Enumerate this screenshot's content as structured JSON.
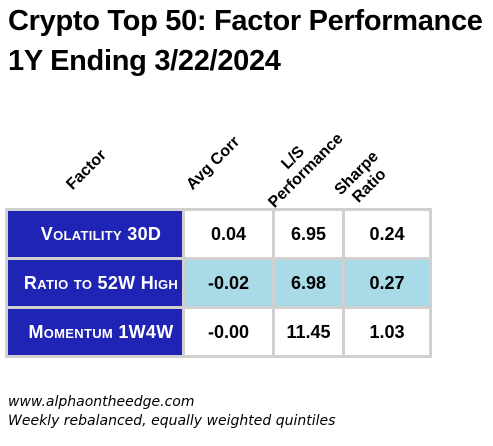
{
  "title_line1": "Crypto Top 50: Factor Performance",
  "title_line2": "1Y Ending 3/22/2024",
  "headers": {
    "factor": "Factor",
    "avg_corr": "Avg Corr",
    "ls_perf_line1": "L/S",
    "ls_perf_line2": "Performance",
    "sharpe_line1": "Sharpe",
    "sharpe_line2": "Ratio"
  },
  "rows": [
    {
      "factor": "Volatility 30D",
      "avg_corr": "0.04",
      "ls_performance": "6.95",
      "sharpe_ratio": "0.24"
    },
    {
      "factor": "Ratio to 52W High",
      "avg_corr": "-0.02",
      "ls_performance": "6.98",
      "sharpe_ratio": "0.27"
    },
    {
      "factor": "Momentum 1W4W",
      "avg_corr": "-0.00",
      "ls_performance": "11.45",
      "sharpe_ratio": "1.03"
    }
  ],
  "footer_line1": "www.alphaontheedge.com",
  "footer_line2": "Weekly rebalanced, equally weighted quintiles",
  "colors": {
    "label_bg": "#1f24b4",
    "highlight_bg": "#a9dae8",
    "grid": "#d0d0d0"
  }
}
